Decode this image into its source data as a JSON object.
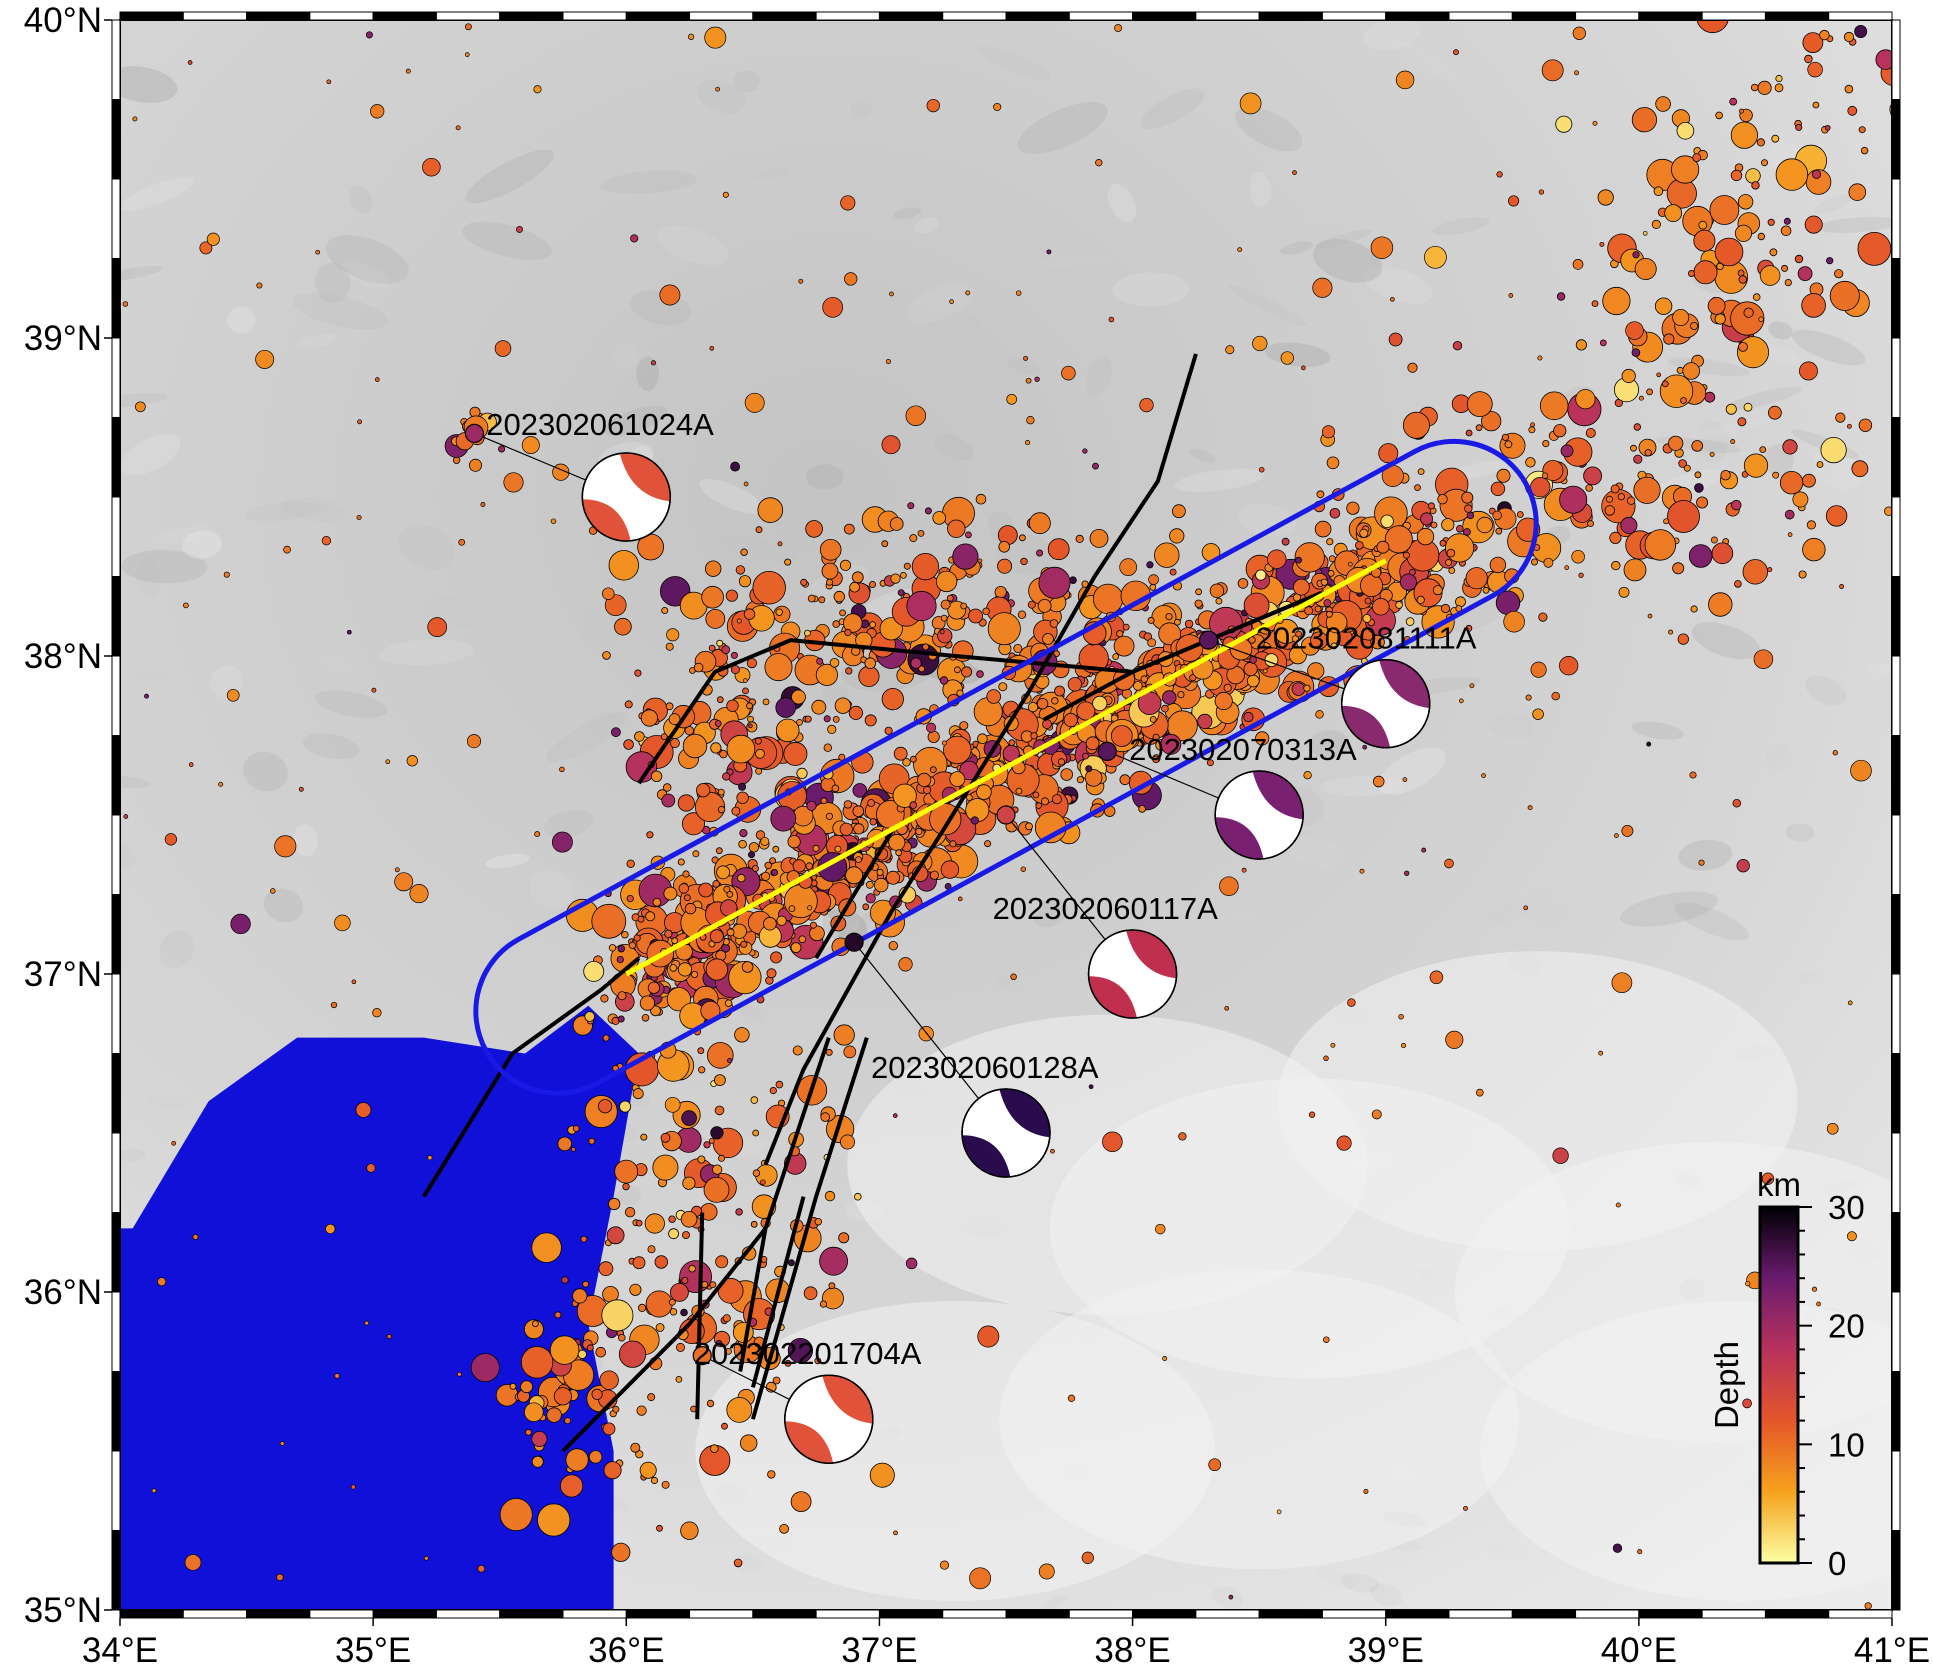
{
  "map": {
    "lon_range": [
      34,
      41
    ],
    "lat_range": [
      35,
      40
    ],
    "x_tick_labels": [
      "34°E",
      "35°E",
      "36°E",
      "37°E",
      "38°E",
      "39°E",
      "40°E",
      "41°E"
    ],
    "y_tick_labels": [
      "35°N",
      "36°N",
      "37°N",
      "38°N",
      "39°N",
      "40°N"
    ],
    "colors": {
      "sea": "#1010d8",
      "fault": "#000000",
      "profile_line": "#ffff00",
      "profile_box": "#1a1ae6",
      "land": "#d9d9d9"
    }
  },
  "colorbar": {
    "title": "Depth",
    "unit": "km",
    "tick_labels": [
      "0",
      "10",
      "20",
      "30"
    ],
    "range": [
      0,
      30
    ],
    "colormap": "inferno (reversed)"
  },
  "events": [
    {
      "id": "202302061024A",
      "lon": 35.4,
      "lat": 38.7,
      "depth": 20,
      "beach_lon": 36.0,
      "beach_lat": 38.5,
      "color": "#e0533a",
      "label": "202302061024A"
    },
    {
      "id": "202302081111A",
      "lon": 38.3,
      "lat": 38.05,
      "depth": 25,
      "beach_lon": 39.0,
      "beach_lat": 37.85,
      "color": "#8a2a6e",
      "label": "202302081111A"
    },
    {
      "id": "202302070313A",
      "lon": 37.9,
      "lat": 37.7,
      "depth": 25,
      "beach_lon": 38.5,
      "beach_lat": 37.5,
      "color": "#7a2070",
      "label": "202302070313A"
    },
    {
      "id": "202302060117A",
      "lon": 37.5,
      "lat": 37.5,
      "depth": 15,
      "beach_lon": 38.0,
      "beach_lat": 37.0,
      "color": "#c0304e",
      "label": "202302060117A"
    },
    {
      "id": "202302060128A",
      "lon": 36.9,
      "lat": 37.1,
      "depth": 28,
      "beach_lon": 37.5,
      "beach_lat": 36.5,
      "color": "#2a0c4e",
      "label": "202302060128A"
    },
    {
      "id": "202302201704A",
      "lon": 36.3,
      "lat": 35.8,
      "depth": 10,
      "beach_lon": 36.8,
      "beach_lat": 35.6,
      "color": "#e0533a",
      "label": "202302201704A"
    }
  ]
}
